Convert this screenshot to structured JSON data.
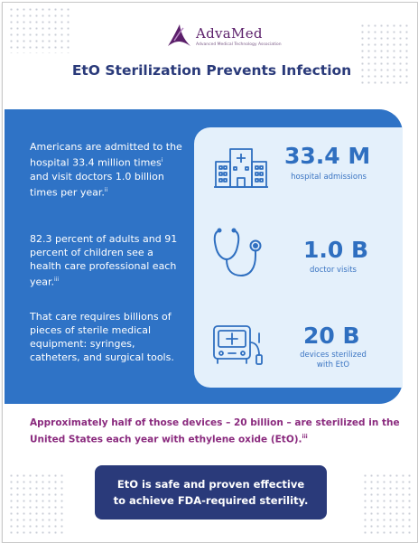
{
  "header": {
    "logo_name": "AdvaMed",
    "logo_tagline": "Advanced Medical Technology Association",
    "title": "EtO Sterilization Prevents Infection"
  },
  "facts": [
    {
      "text_before": "Americans are admitted to the hospital 33.4 million times",
      "ref_1": "i",
      "text_middle": " and visit doctors 1.0 billion times per year.",
      "ref_2": "ii"
    },
    {
      "text": "82.3 percent of adults and 91 percent of children see a health care professional each year.",
      "ref": "iii"
    },
    {
      "text": "That care requires billions of pieces of sterile medical equipment: syringes, catheters, and surgical tools."
    }
  ],
  "stats": [
    {
      "value": "33.4 M",
      "label": "hospital admissions",
      "icon": "hospital-building-icon"
    },
    {
      "value": "1.0 B",
      "label": "doctor visits",
      "icon": "stethoscope-icon"
    },
    {
      "value": "20 B",
      "label_line1": "devices sterilized",
      "label_line2": "with EtO",
      "icon": "medical-device-icon"
    }
  ],
  "closing": {
    "text": "Approximately half of those devices – 20 billion – are sterilized in the United States each year with ethylene oxide (EtO).",
    "ref": "iii"
  },
  "callout": {
    "line1": "EtO is safe and proven effective",
    "line2": "to achieve FDA-required sterility."
  },
  "colors": {
    "band_blue": "#2f73c6",
    "stat_panel": "#e4f0fb",
    "navy": "#2a3a7a",
    "purple": "#8a2a7e"
  }
}
